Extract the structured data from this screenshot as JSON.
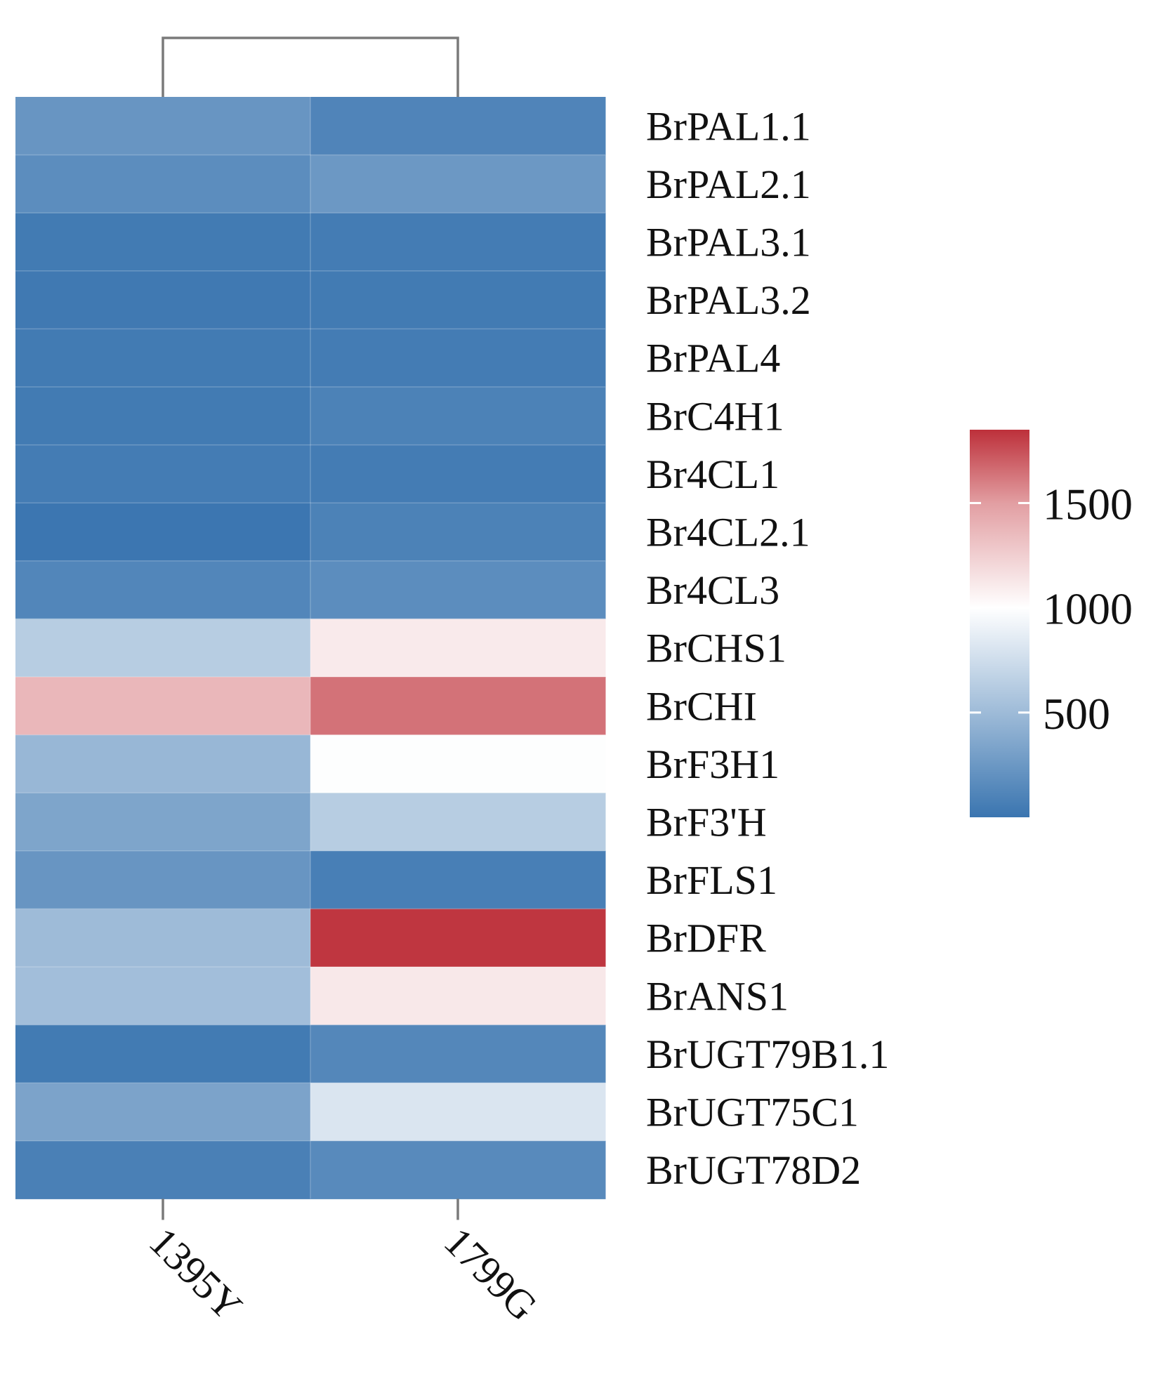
{
  "chart_data": {
    "type": "heatmap",
    "columns": [
      "1395Y",
      "1799G"
    ],
    "rows": [
      "BrPAL1.1",
      "BrPAL2.1",
      "BrPAL3.1",
      "BrPAL3.2",
      "BrPAL4",
      "BrC4H1",
      "Br4CL1",
      "Br4CL2.1",
      "Br4CL3",
      "BrCHS1",
      "BrCHI",
      "BrF3H1",
      "BrF3'H",
      "BrFLS1",
      "BrDFR",
      "BrANS1",
      "BrUGT79B1.1",
      "BrUGT75C1",
      "BrUGT78D2"
    ],
    "values": [
      [
        230,
        110
      ],
      [
        170,
        250
      ],
      [
        40,
        50
      ],
      [
        30,
        40
      ],
      [
        40,
        50
      ],
      [
        40,
        90
      ],
      [
        50,
        50
      ],
      [
        10,
        90
      ],
      [
        120,
        170
      ],
      [
        630,
        1110
      ],
      [
        1370,
        1640
      ],
      [
        470,
        990
      ],
      [
        340,
        630
      ],
      [
        230,
        70
      ],
      [
        500,
        1830
      ],
      [
        520,
        1120
      ],
      [
        40,
        130
      ],
      [
        330,
        810
      ],
      [
        80,
        150
      ]
    ],
    "color_scale": {
      "min": 0,
      "max": 1850,
      "stops": [
        {
          "value": 0,
          "color": "#3a75b0"
        },
        {
          "value": 500,
          "color": "#9ebbd8"
        },
        {
          "value": 1000,
          "color": "#ffffff"
        },
        {
          "value": 1500,
          "color": "#e29ea2"
        },
        {
          "value": 1850,
          "color": "#bd303a"
        }
      ]
    },
    "legend": {
      "ticks": [
        500,
        1000,
        1500
      ],
      "tick_labels": [
        "500",
        "1000",
        "1500"
      ],
      "position": "right"
    },
    "column_dendrogram": true,
    "title": "",
    "xlabel": "",
    "ylabel": ""
  }
}
